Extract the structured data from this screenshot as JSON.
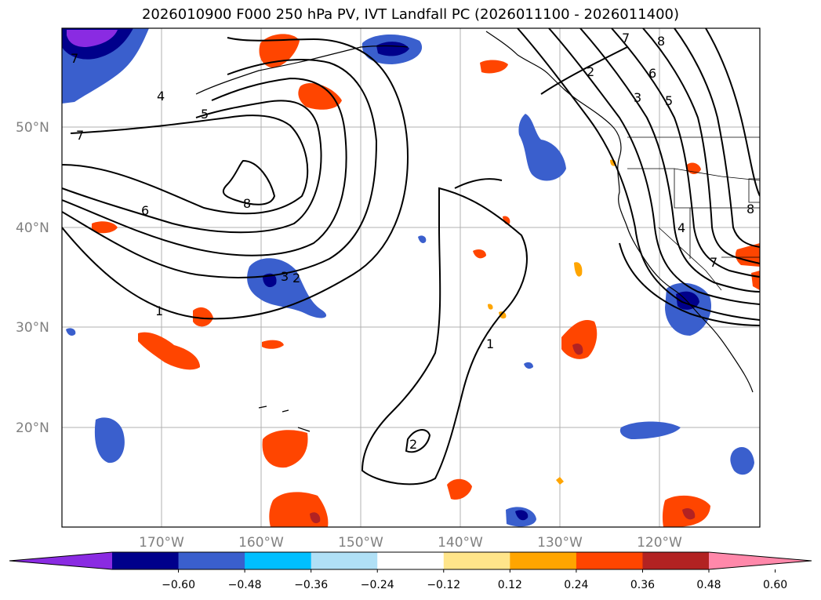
{
  "title": "2026010900 F000 250 hPa PV, IVT Landfall PC (2026011100 - 2026011400)",
  "lat_labels": [
    "50°N",
    "40°N",
    "30°N",
    "20°N"
  ],
  "lon_labels": [
    "170°W",
    "160°W",
    "150°W",
    "140°W",
    "130°W",
    "120°W"
  ],
  "colorbar": {
    "ticks": [
      "−0.60",
      "−0.48",
      "−0.36",
      "−0.24",
      "−0.12",
      "0.12",
      "0.24",
      "0.36",
      "0.48",
      "0.60"
    ],
    "colors": [
      "#8a2be2",
      "#00008b",
      "#3a5fcd",
      "#00bfff",
      "#b0e0f6",
      "#ffffff",
      "#ffe58a",
      "#ffa500",
      "#ff4500",
      "#b22222",
      "#ff88aa"
    ]
  },
  "contour_labels": [
    "7",
    "8",
    "7",
    "2",
    "3",
    "5",
    "6",
    "4",
    "5",
    "7",
    "6",
    "8",
    "1",
    "3",
    "2",
    "1",
    "2",
    "4",
    "7",
    "8"
  ]
}
